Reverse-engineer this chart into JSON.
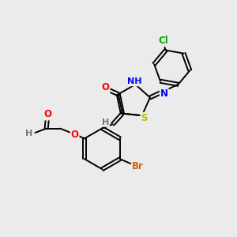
{
  "background_color": "#ebebeb",
  "bond_color": "#000000",
  "atom_colors": {
    "O": "#ff0000",
    "N": "#0000ff",
    "S": "#bbbb00",
    "Br": "#cc6600",
    "Cl": "#00aa00",
    "H": "#777777",
    "C": "#000000"
  },
  "font_size": 8.5,
  "lw": 1.4
}
